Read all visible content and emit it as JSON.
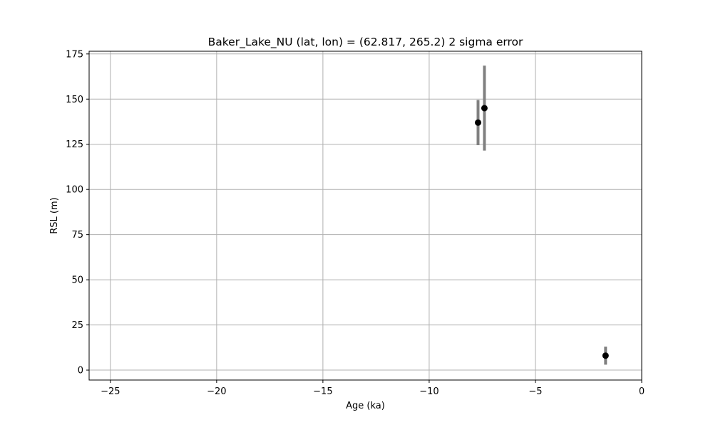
{
  "chart_data": {
    "type": "scatter",
    "title": "Baker_Lake_NU (lat, lon) = (62.817, 265.2)  2 sigma error",
    "xlabel": "Age (ka)",
    "ylabel": "RSL (m)",
    "xlim": [
      -26,
      0
    ],
    "ylim": [
      -5.5,
      176.5
    ],
    "xticks": [
      -25,
      -20,
      -15,
      -10,
      -5,
      0
    ],
    "xtick_labels": [
      "−25",
      "−20",
      "−15",
      "−10",
      "−5",
      "0"
    ],
    "yticks": [
      0,
      25,
      50,
      75,
      100,
      125,
      150,
      175
    ],
    "ytick_labels": [
      "0",
      "25",
      "50",
      "75",
      "100",
      "125",
      "150",
      "175"
    ],
    "grid": true,
    "points": [
      {
        "x": -7.7,
        "y": 137,
        "err_low": 124.5,
        "err_high": 149.5
      },
      {
        "x": -7.4,
        "y": 145,
        "err_low": 121.5,
        "err_high": 168.5
      },
      {
        "x": -1.7,
        "y": 8,
        "err_low": 3,
        "err_high": 13
      }
    ],
    "colors": {
      "marker": "#000000",
      "errorbar": "#808080",
      "grid": "#b0b0b0",
      "axes": "#000000"
    }
  }
}
